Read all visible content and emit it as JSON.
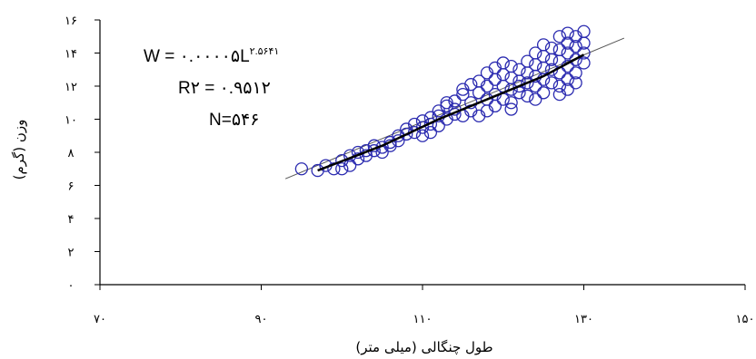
{
  "chart_data": {
    "type": "scatter",
    "xlabel": "طول چنگالی (میلی متر)",
    "ylabel": "وزن (گرم)",
    "xlim": [
      70,
      150
    ],
    "ylim": [
      0,
      16
    ],
    "x_ticks": [
      70,
      90,
      110,
      130,
      150
    ],
    "y_ticks": [
      0,
      2,
      4,
      6,
      8,
      10,
      12,
      14,
      16
    ],
    "x_tick_labels": [
      "۷۰",
      "۹۰",
      "۱۱۰",
      "۱۳۰",
      "۱۵۰"
    ],
    "y_tick_labels": [
      "۰",
      "۲",
      "۴",
      "۶",
      "۸",
      "۱۰",
      "۱۲",
      "۱۴",
      "۱۶"
    ],
    "grid": false,
    "marker_color": "#2b2bb0",
    "annotations": {
      "equation_base": "W = ۰.۰۰۰۰۵L",
      "equation_exp": "۲.۵۶۴۱",
      "r2": "R۲ = ۰.۹۵۱۲",
      "n": "N=۵۴۶"
    },
    "fit_line_thin": [
      [
        93,
        6.4
      ],
      [
        135,
        14.9
      ]
    ],
    "fit_curve": [
      [
        97,
        6.9
      ],
      [
        105,
        8.4
      ],
      [
        112,
        10.0
      ],
      [
        120,
        11.6
      ],
      [
        125,
        12.6
      ],
      [
        130,
        13.9
      ]
    ],
    "points": [
      [
        95,
        7.0
      ],
      [
        97,
        6.9
      ],
      [
        98,
        7.2
      ],
      [
        99,
        7.0
      ],
      [
        100,
        7.0
      ],
      [
        100,
        7.5
      ],
      [
        101,
        7.8
      ],
      [
        101,
        7.2
      ],
      [
        102,
        7.6
      ],
      [
        102,
        8.0
      ],
      [
        103,
        8.1
      ],
      [
        103,
        7.8
      ],
      [
        104,
        8.1
      ],
      [
        104,
        8.4
      ],
      [
        105,
        8.3
      ],
      [
        105,
        8.0
      ],
      [
        106,
        8.6
      ],
      [
        106,
        8.4
      ],
      [
        107,
        9.0
      ],
      [
        107,
        8.7
      ],
      [
        108,
        9.1
      ],
      [
        108,
        9.4
      ],
      [
        109,
        9.2
      ],
      [
        109,
        9.7
      ],
      [
        110,
        9.5
      ],
      [
        110,
        9.9
      ],
      [
        110,
        9.0
      ],
      [
        111,
        9.7
      ],
      [
        111,
        10.1
      ],
      [
        111,
        9.2
      ],
      [
        112,
        10.2
      ],
      [
        112,
        10.5
      ],
      [
        112,
        9.6
      ],
      [
        113,
        10.0
      ],
      [
        113,
        10.8
      ],
      [
        113,
        11.0
      ],
      [
        114,
        10.3
      ],
      [
        114,
        11.1
      ],
      [
        114,
        10.6
      ],
      [
        115,
        11.5
      ],
      [
        115,
        10.2
      ],
      [
        115,
        11.8
      ],
      [
        116,
        11.0
      ],
      [
        116,
        12.1
      ],
      [
        116,
        10.5
      ],
      [
        117,
        11.6
      ],
      [
        117,
        12.3
      ],
      [
        117,
        10.2
      ],
      [
        118,
        11.2
      ],
      [
        118,
        12.0
      ],
      [
        118,
        12.8
      ],
      [
        118,
        10.5
      ],
      [
        119,
        11.5
      ],
      [
        119,
        12.4
      ],
      [
        119,
        13.1
      ],
      [
        119,
        10.8
      ],
      [
        120,
        11.2
      ],
      [
        120,
        12.0
      ],
      [
        120,
        12.7
      ],
      [
        120,
        13.4
      ],
      [
        121,
        11.0
      ],
      [
        121,
        11.8
      ],
      [
        121,
        12.5
      ],
      [
        121,
        13.2
      ],
      [
        121,
        10.6
      ],
      [
        122,
        11.6
      ],
      [
        122,
        12.3
      ],
      [
        122,
        13.0
      ],
      [
        122,
        12.0
      ],
      [
        123,
        11.4
      ],
      [
        123,
        12.2
      ],
      [
        123,
        13.5
      ],
      [
        123,
        12.8
      ],
      [
        124,
        12.0
      ],
      [
        124,
        12.6
      ],
      [
        124,
        13.3
      ],
      [
        124,
        14.0
      ],
      [
        124,
        11.2
      ],
      [
        125,
        12.4
      ],
      [
        125,
        13.1
      ],
      [
        125,
        13.8
      ],
      [
        125,
        14.5
      ],
      [
        125,
        11.6
      ],
      [
        126,
        12.2
      ],
      [
        126,
        13.0
      ],
      [
        126,
        13.6
      ],
      [
        126,
        14.3
      ],
      [
        127,
        12.0
      ],
      [
        127,
        12.8
      ],
      [
        127,
        13.5
      ],
      [
        127,
        14.2
      ],
      [
        127,
        15.0
      ],
      [
        127,
        11.5
      ],
      [
        128,
        12.4
      ],
      [
        128,
        13.2
      ],
      [
        128,
        14.0
      ],
      [
        128,
        14.6
      ],
      [
        128,
        15.2
      ],
      [
        128,
        11.8
      ],
      [
        129,
        12.8
      ],
      [
        129,
        13.6
      ],
      [
        129,
        14.4
      ],
      [
        129,
        15.0
      ],
      [
        129,
        12.2
      ],
      [
        130,
        13.4
      ],
      [
        130,
        14.0
      ],
      [
        130,
        14.6
      ],
      [
        130,
        15.3
      ]
    ]
  }
}
